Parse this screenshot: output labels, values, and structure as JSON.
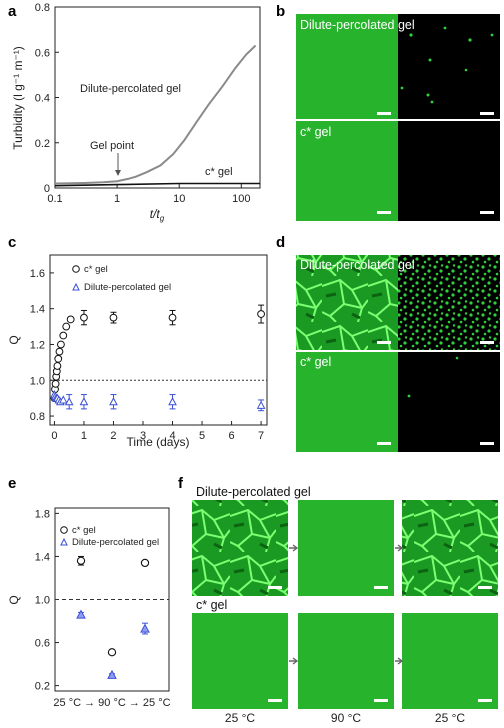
{
  "panel_letters": {
    "a": "a",
    "b": "b",
    "c": "c",
    "d": "d",
    "e": "e",
    "f": "f"
  },
  "colors": {
    "green": "#27b32c",
    "green_dark": "#0f6e14",
    "gray_curve": "#8a8a8a",
    "blue": "#3a4fd6",
    "black": "#111111"
  },
  "chart_data": [
    {
      "id": "a",
      "type": "line",
      "xscale": "log",
      "xlim": [
        0.1,
        200
      ],
      "ylim": [
        0,
        0.8
      ],
      "xticks": [
        "0.1",
        "1",
        "10",
        "100"
      ],
      "yticks": [
        "0",
        "0.2",
        "0.4",
        "0.6",
        "0.8"
      ],
      "ylabel": "Turbidity (l g⁻¹ m⁻¹)",
      "xlabel": "t/t_g",
      "annotations": [
        "Dilute-percolated gel",
        "Gel point",
        "c* gel"
      ],
      "series": [
        {
          "name": "Dilute-percolated gel",
          "x": [
            0.1,
            0.3,
            0.6,
            1,
            1.5,
            2,
            3,
            5,
            8,
            12,
            20,
            30,
            50,
            80,
            120,
            170
          ],
          "y": [
            0.02,
            0.022,
            0.025,
            0.03,
            0.04,
            0.05,
            0.07,
            0.1,
            0.15,
            0.21,
            0.3,
            0.37,
            0.45,
            0.53,
            0.59,
            0.63
          ]
        },
        {
          "name": "c* gel",
          "x": [
            0.1,
            1,
            10,
            100,
            200
          ],
          "y": [
            0.01,
            0.015,
            0.02,
            0.02,
            0.02
          ]
        }
      ]
    },
    {
      "id": "c",
      "type": "scatter",
      "xlim": [
        -0.15,
        7.2
      ],
      "ylim": [
        0.75,
        1.7
      ],
      "xticks": [
        "0",
        "1",
        "2",
        "3",
        "4",
        "5",
        "6",
        "7"
      ],
      "yticks": [
        "0.8",
        "1.0",
        "1.2",
        "1.4",
        "1.6"
      ],
      "ylabel": "Q",
      "xlabel": "Time (days)",
      "reference_line": 1.0,
      "legend": [
        "c* gel",
        "Dilute-percolated gel"
      ],
      "series": [
        {
          "name": "c* gel",
          "marker": "circle",
          "x": [
            0.0,
            0.02,
            0.04,
            0.06,
            0.08,
            0.1,
            0.13,
            0.17,
            0.22,
            0.3,
            0.4,
            0.55,
            1,
            2,
            4,
            7
          ],
          "y": [
            0.9,
            0.95,
            0.98,
            1.02,
            1.05,
            1.08,
            1.12,
            1.16,
            1.2,
            1.25,
            1.3,
            1.34,
            1.35,
            1.35,
            1.35,
            1.37
          ],
          "err": [
            0,
            0,
            0,
            0,
            0,
            0,
            0,
            0,
            0,
            0,
            0,
            0,
            0.04,
            0.03,
            0.04,
            0.05
          ]
        },
        {
          "name": "Dilute-percolated gel",
          "marker": "triangle",
          "x": [
            0.0,
            0.03,
            0.06,
            0.1,
            0.15,
            0.2,
            0.3,
            0.5,
            1,
            2,
            4,
            7
          ],
          "y": [
            0.92,
            0.91,
            0.9,
            0.9,
            0.89,
            0.88,
            0.89,
            0.88,
            0.88,
            0.88,
            0.88,
            0.86
          ],
          "err": [
            0,
            0,
            0,
            0,
            0,
            0,
            0,
            0.04,
            0.04,
            0.04,
            0.04,
            0.03
          ]
        }
      ]
    },
    {
      "id": "e",
      "type": "scatter",
      "ylim": [
        0.15,
        1.85
      ],
      "yticks": [
        "0.2",
        "0.6",
        "1.0",
        "1.4",
        "1.8"
      ],
      "ylabel": "Q",
      "xlabel": "25 °C → 90 °C → 25 °C",
      "reference_line": 1.0,
      "legend": [
        "c* gel",
        "Dilute-percolated gel"
      ],
      "series": [
        {
          "name": "c* gel",
          "marker": "circle",
          "values": [
            1.36,
            0.51,
            1.34
          ],
          "err": [
            0.04,
            0.02,
            0.02
          ]
        },
        {
          "name": "Dilute-percolated gel",
          "marker": "triangle",
          "values": [
            0.86,
            0.3,
            0.73
          ],
          "err": [
            0.02,
            0.01,
            0.05
          ]
        }
      ]
    }
  ],
  "panel_b": {
    "top_label": "Dilute-percolated gel",
    "bottom_label": "c* gel"
  },
  "panel_d": {
    "top_label": "Dilute-percolated gel",
    "bottom_label": "c* gel"
  },
  "panel_f": {
    "top_label": "Dilute-percolated gel",
    "bottom_label": "c* gel",
    "temps": [
      "25 °C",
      "90 °C",
      "25 °C"
    ]
  }
}
